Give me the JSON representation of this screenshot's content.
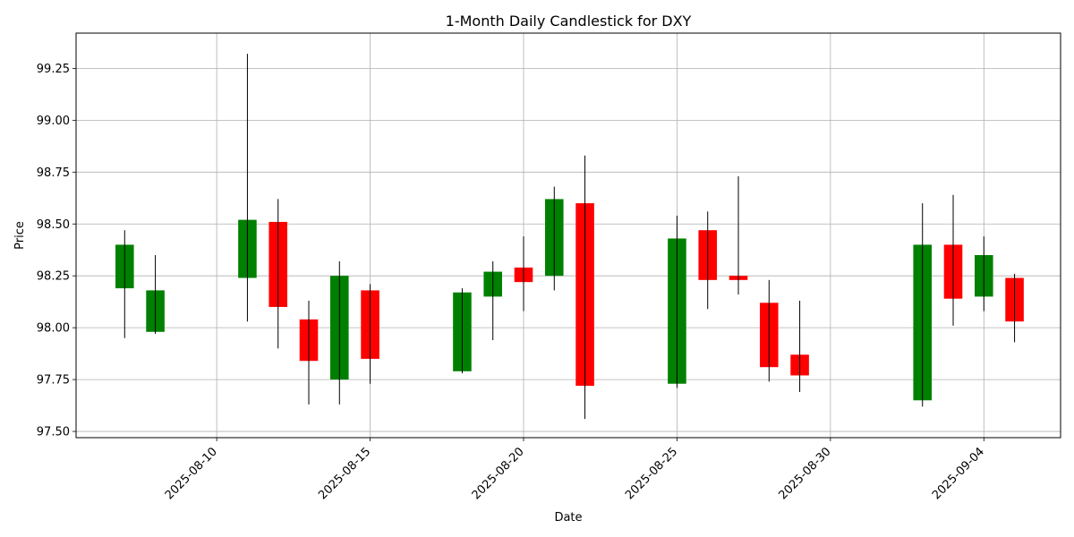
{
  "chart_data": {
    "type": "candlestick",
    "title": "1-Month Daily Candlestick for DXY",
    "xlabel": "Date",
    "ylabel": "Price",
    "ylim": [
      97.47,
      99.42
    ],
    "xlim": [
      "2025-08-05T10:00",
      "2025-09-06T12:00"
    ],
    "grid": true,
    "x_ticks": [
      "2025-08-10",
      "2025-08-15",
      "2025-08-20",
      "2025-08-25",
      "2025-08-30",
      "2025-09-04"
    ],
    "y_ticks": [
      "97.50",
      "97.75",
      "98.00",
      "98.25",
      "98.50",
      "98.75",
      "99.00",
      "99.25"
    ],
    "colors": {
      "up": "#008000",
      "down": "#ff0000",
      "wick": "#000000",
      "grid": "#b0b0b0"
    },
    "candles": [
      {
        "date": "2025-08-07",
        "open": 98.19,
        "high": 98.47,
        "low": 97.95,
        "close": 98.4
      },
      {
        "date": "2025-08-08",
        "open": 97.98,
        "high": 98.35,
        "low": 97.97,
        "close": 98.18
      },
      {
        "date": "2025-08-11",
        "open": 98.24,
        "high": 99.32,
        "low": 98.03,
        "close": 98.52
      },
      {
        "date": "2025-08-12",
        "open": 98.51,
        "high": 98.62,
        "low": 97.9,
        "close": 98.1
      },
      {
        "date": "2025-08-13",
        "open": 98.04,
        "high": 98.13,
        "low": 97.63,
        "close": 97.84
      },
      {
        "date": "2025-08-14",
        "open": 97.75,
        "high": 98.32,
        "low": 97.63,
        "close": 98.25
      },
      {
        "date": "2025-08-15",
        "open": 98.18,
        "high": 98.21,
        "low": 97.73,
        "close": 97.85
      },
      {
        "date": "2025-08-18",
        "open": 97.79,
        "high": 98.19,
        "low": 97.78,
        "close": 98.17
      },
      {
        "date": "2025-08-19",
        "open": 98.15,
        "high": 98.32,
        "low": 97.94,
        "close": 98.27
      },
      {
        "date": "2025-08-20",
        "open": 98.29,
        "high": 98.44,
        "low": 98.08,
        "close": 98.22
      },
      {
        "date": "2025-08-21",
        "open": 98.25,
        "high": 98.68,
        "low": 98.18,
        "close": 98.62
      },
      {
        "date": "2025-08-22",
        "open": 98.6,
        "high": 98.83,
        "low": 97.56,
        "close": 97.72
      },
      {
        "date": "2025-08-25",
        "open": 97.73,
        "high": 98.54,
        "low": 97.71,
        "close": 98.43
      },
      {
        "date": "2025-08-26",
        "open": 98.47,
        "high": 98.56,
        "low": 98.09,
        "close": 98.23
      },
      {
        "date": "2025-08-27",
        "open": 98.25,
        "high": 98.73,
        "low": 98.16,
        "close": 98.23
      },
      {
        "date": "2025-08-28",
        "open": 98.12,
        "high": 98.23,
        "low": 97.74,
        "close": 97.81
      },
      {
        "date": "2025-08-29",
        "open": 97.87,
        "high": 98.13,
        "low": 97.69,
        "close": 97.77
      },
      {
        "date": "2025-09-02",
        "open": 97.65,
        "high": 98.6,
        "low": 97.62,
        "close": 98.4
      },
      {
        "date": "2025-09-03",
        "open": 98.4,
        "high": 98.64,
        "low": 98.01,
        "close": 98.14
      },
      {
        "date": "2025-09-04",
        "open": 98.15,
        "high": 98.44,
        "low": 98.08,
        "close": 98.35
      },
      {
        "date": "2025-09-05",
        "open": 98.24,
        "high": 98.26,
        "low": 97.93,
        "close": 98.03
      }
    ]
  }
}
